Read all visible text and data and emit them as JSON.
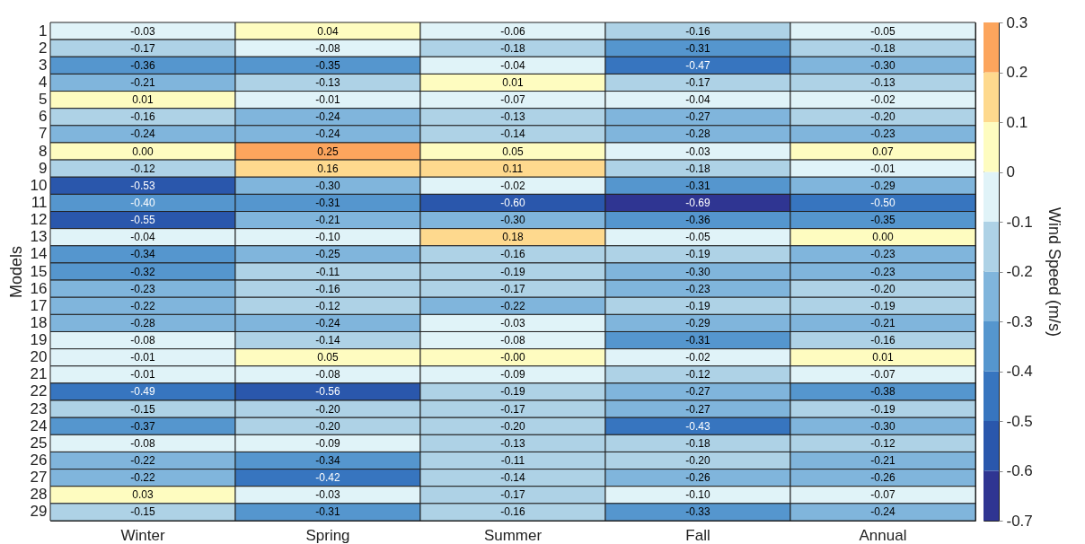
{
  "chart_data": {
    "type": "heatmap",
    "ylabel": "Models",
    "clabel": "Wind Speed (m/s)",
    "categories": [
      "Winter",
      "Spring",
      "Summer",
      "Fall",
      "Annual"
    ],
    "y_categories": [
      "1",
      "2",
      "3",
      "4",
      "5",
      "6",
      "7",
      "8",
      "9",
      "10",
      "11",
      "12",
      "13",
      "14",
      "15",
      "16",
      "17",
      "18",
      "19",
      "20",
      "21",
      "22",
      "23",
      "24",
      "25",
      "26",
      "27",
      "28",
      "29"
    ],
    "clim": [
      -0.7,
      0.3
    ],
    "cticks": [
      -0.7,
      -0.6,
      -0.5,
      -0.4,
      -0.3,
      -0.2,
      -0.1,
      0,
      0.1,
      0.2,
      0.3
    ],
    "cells": [
      [
        -0.03,
        0.04,
        -0.06,
        -0.16,
        -0.05
      ],
      [
        -0.17,
        -0.08,
        -0.18,
        -0.31,
        -0.18
      ],
      [
        -0.36,
        -0.35,
        -0.04,
        -0.47,
        -0.3
      ],
      [
        -0.21,
        -0.13,
        0.01,
        -0.17,
        -0.13
      ],
      [
        0.01,
        -0.01,
        -0.07,
        -0.04,
        -0.02
      ],
      [
        -0.16,
        -0.24,
        -0.13,
        -0.27,
        -0.2
      ],
      [
        -0.24,
        -0.24,
        -0.14,
        -0.28,
        -0.23
      ],
      [
        0.0,
        0.25,
        0.05,
        -0.03,
        0.07
      ],
      [
        -0.12,
        0.16,
        0.11,
        -0.18,
        -0.01
      ],
      [
        -0.53,
        -0.3,
        -0.02,
        -0.31,
        -0.29
      ],
      [
        -0.4,
        -0.31,
        -0.6,
        -0.69,
        -0.5
      ],
      [
        -0.55,
        -0.21,
        -0.3,
        -0.36,
        -0.35
      ],
      [
        -0.04,
        -0.1,
        0.18,
        -0.05,
        0.0
      ],
      [
        -0.34,
        -0.25,
        -0.16,
        -0.19,
        -0.23
      ],
      [
        -0.32,
        -0.11,
        -0.19,
        -0.3,
        -0.23
      ],
      [
        -0.23,
        -0.16,
        -0.17,
        -0.23,
        -0.2
      ],
      [
        -0.22,
        -0.12,
        -0.22,
        -0.19,
        -0.19
      ],
      [
        -0.28,
        -0.24,
        -0.03,
        -0.29,
        -0.21
      ],
      [
        -0.08,
        -0.14,
        -0.08,
        -0.31,
        -0.16
      ],
      [
        -0.01,
        0.05,
        -0.0,
        -0.02,
        0.01
      ],
      [
        -0.01,
        -0.08,
        -0.09,
        -0.12,
        -0.07
      ],
      [
        -0.49,
        -0.56,
        -0.19,
        -0.27,
        -0.38
      ],
      [
        -0.15,
        -0.2,
        -0.17,
        -0.27,
        -0.19
      ],
      [
        -0.37,
        -0.2,
        -0.2,
        -0.43,
        -0.3
      ],
      [
        -0.08,
        -0.09,
        -0.13,
        -0.18,
        -0.12
      ],
      [
        -0.22,
        -0.34,
        -0.11,
        -0.2,
        -0.21
      ],
      [
        -0.22,
        -0.42,
        -0.14,
        -0.26,
        -0.26
      ],
      [
        0.03,
        -0.03,
        -0.17,
        -0.1,
        -0.07
      ],
      [
        -0.15,
        -0.31,
        -0.16,
        -0.33,
        -0.24
      ]
    ],
    "cell_labels": [
      [
        "-0.03",
        "0.04",
        "-0.06",
        "-0.16",
        "-0.05"
      ],
      [
        "-0.17",
        "-0.08",
        "-0.18",
        "-0.31",
        "-0.18"
      ],
      [
        "-0.36",
        "-0.35",
        "-0.04",
        "-0.47",
        "-0.30"
      ],
      [
        "-0.21",
        "-0.13",
        "0.01",
        "-0.17",
        "-0.13"
      ],
      [
        "0.01",
        "-0.01",
        "-0.07",
        "-0.04",
        "-0.02"
      ],
      [
        "-0.16",
        "-0.24",
        "-0.13",
        "-0.27",
        "-0.20"
      ],
      [
        "-0.24",
        "-0.24",
        "-0.14",
        "-0.28",
        "-0.23"
      ],
      [
        "0.00",
        "0.25",
        "0.05",
        "-0.03",
        "0.07"
      ],
      [
        "-0.12",
        "0.16",
        "0.11",
        "-0.18",
        "-0.01"
      ],
      [
        "-0.53",
        "-0.30",
        "-0.02",
        "-0.31",
        "-0.29"
      ],
      [
        "-0.40",
        "-0.31",
        "-0.60",
        "-0.69",
        "-0.50"
      ],
      [
        "-0.55",
        "-0.21",
        "-0.30",
        "-0.36",
        "-0.35"
      ],
      [
        "-0.04",
        "-0.10",
        "0.18",
        "-0.05",
        "0.00"
      ],
      [
        "-0.34",
        "-0.25",
        "-0.16",
        "-0.19",
        "-0.23"
      ],
      [
        "-0.32",
        "-0.11",
        "-0.19",
        "-0.30",
        "-0.23"
      ],
      [
        "-0.23",
        "-0.16",
        "-0.17",
        "-0.23",
        "-0.20"
      ],
      [
        "-0.22",
        "-0.12",
        "-0.22",
        "-0.19",
        "-0.19"
      ],
      [
        "-0.28",
        "-0.24",
        "-0.03",
        "-0.29",
        "-0.21"
      ],
      [
        "-0.08",
        "-0.14",
        "-0.08",
        "-0.31",
        "-0.16"
      ],
      [
        "-0.01",
        "0.05",
        "-0.00",
        "-0.02",
        "0.01"
      ],
      [
        "-0.01",
        "-0.08",
        "-0.09",
        "-0.12",
        "-0.07"
      ],
      [
        "-0.49",
        "-0.56",
        "-0.19",
        "-0.27",
        "-0.38"
      ],
      [
        "-0.15",
        "-0.20",
        "-0.17",
        "-0.27",
        "-0.19"
      ],
      [
        "-0.37",
        "-0.20",
        "-0.20",
        "-0.43",
        "-0.30"
      ],
      [
        "-0.08",
        "-0.09",
        "-0.13",
        "-0.18",
        "-0.12"
      ],
      [
        "-0.22",
        "-0.34",
        "-0.11",
        "-0.20",
        "-0.21"
      ],
      [
        "-0.22",
        "-0.42",
        "-0.14",
        "-0.26",
        "-0.26"
      ],
      [
        "0.03",
        "-0.03",
        "-0.17",
        "-0.10",
        "-0.07"
      ],
      [
        "-0.15",
        "-0.31",
        "-0.16",
        "-0.33",
        "-0.24"
      ]
    ]
  }
}
